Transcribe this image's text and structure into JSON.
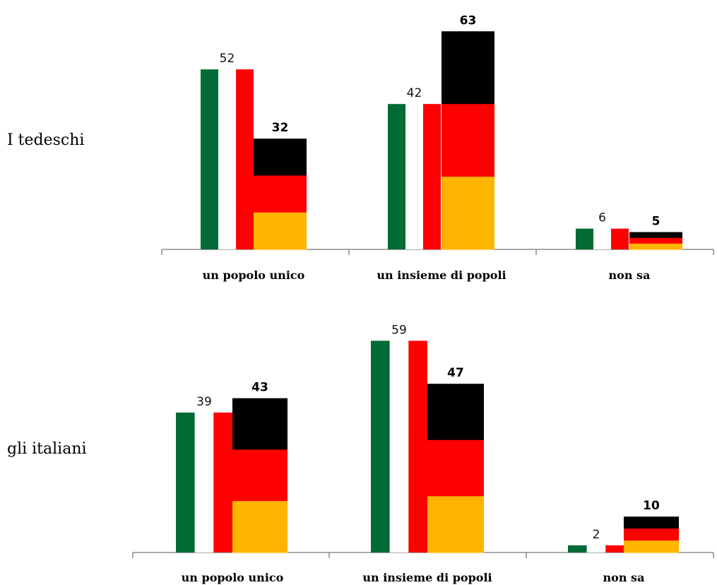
{
  "chart_data": [
    {
      "type": "bar",
      "title": "I tedeschi",
      "categories": [
        "un popolo unico",
        "un insieme di popoli",
        "non sa"
      ],
      "series": [
        {
          "values": [
            52,
            42,
            6
          ]
        },
        {
          "values": [
            32,
            63,
            5
          ]
        }
      ],
      "ylim": [
        0,
        63
      ],
      "grid": false
    },
    {
      "type": "bar",
      "title": "gli italiani",
      "categories": [
        "un popolo unico",
        "un insieme di popoli",
        "non sa"
      ],
      "series": [
        {
          "values": [
            39,
            59,
            2
          ]
        },
        {
          "values": [
            43,
            47,
            10
          ]
        }
      ],
      "ylim": [
        0,
        59
      ],
      "grid": false
    }
  ],
  "colors": {
    "italy": [
      "#006b35",
      "#ffffff",
      "#ff0000"
    ],
    "germany": [
      "#000000",
      "#ff0000",
      "#ffb400"
    ]
  }
}
